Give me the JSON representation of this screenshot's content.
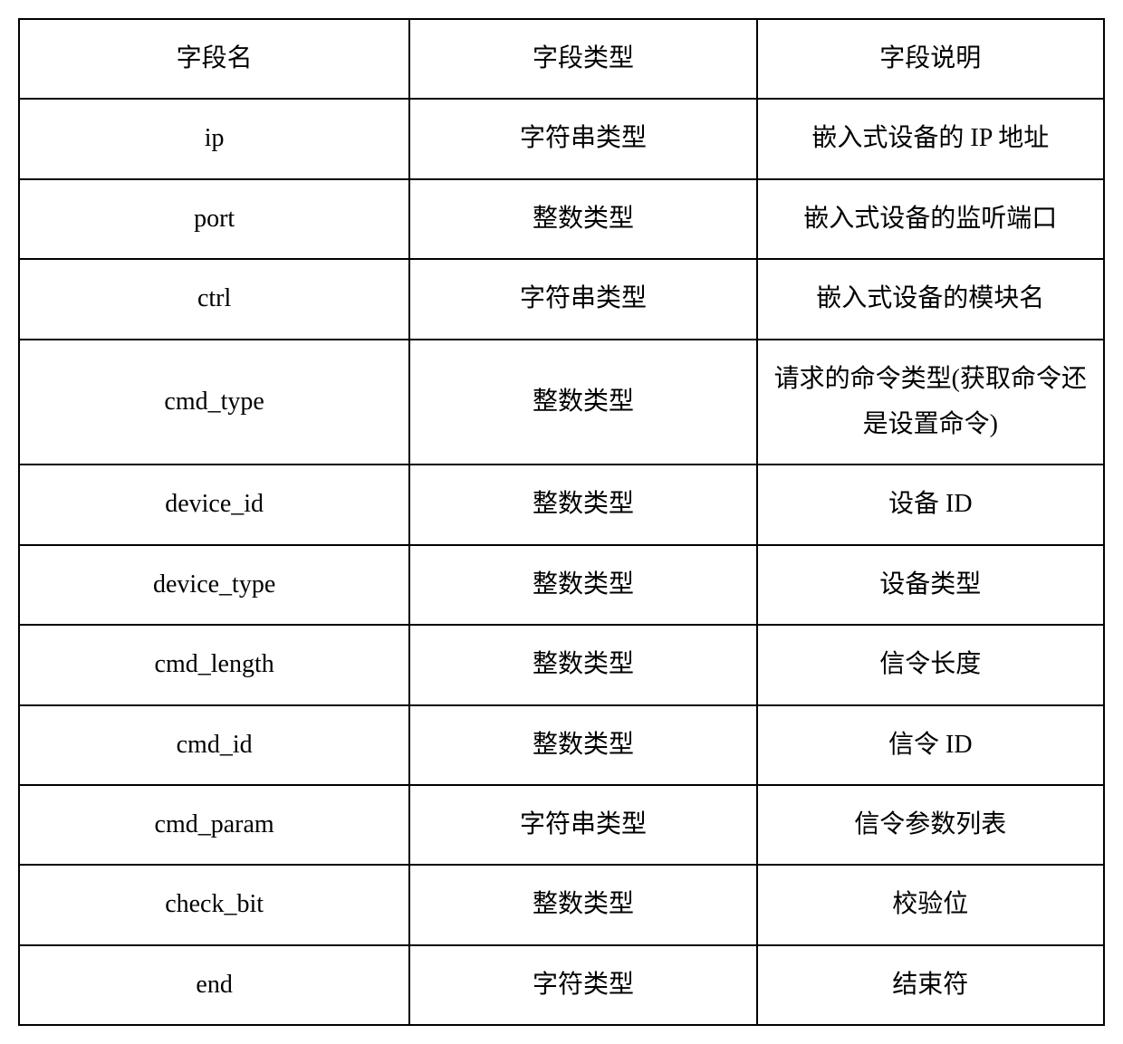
{
  "table": {
    "columns": [
      "字段名",
      "字段类型",
      "字段说明"
    ],
    "rows": [
      [
        "ip",
        "字符串类型",
        "嵌入式设备的 IP 地址"
      ],
      [
        "port",
        "整数类型",
        "嵌入式设备的监听端口"
      ],
      [
        "ctrl",
        "字符串类型",
        "嵌入式设备的模块名"
      ],
      [
        "cmd_type",
        "整数类型",
        "请求的命令类型(获取命令还是设置命令)"
      ],
      [
        "device_id",
        "整数类型",
        "设备 ID"
      ],
      [
        "device_type",
        "整数类型",
        "设备类型"
      ],
      [
        "cmd_length",
        "整数类型",
        "信令长度"
      ],
      [
        "cmd_id",
        "整数类型",
        "信令 ID"
      ],
      [
        "cmd_param",
        "字符串类型",
        "信令参数列表"
      ],
      [
        "check_bit",
        "整数类型",
        "校验位"
      ],
      [
        "end",
        "字符类型",
        "结束符"
      ]
    ],
    "border_color": "#000000",
    "border_width": 2,
    "background_color": "#ffffff",
    "text_color": "#000000",
    "font_size": 28,
    "cell_padding": 18,
    "column_widths": [
      "36%",
      "32%",
      "32%"
    ]
  }
}
